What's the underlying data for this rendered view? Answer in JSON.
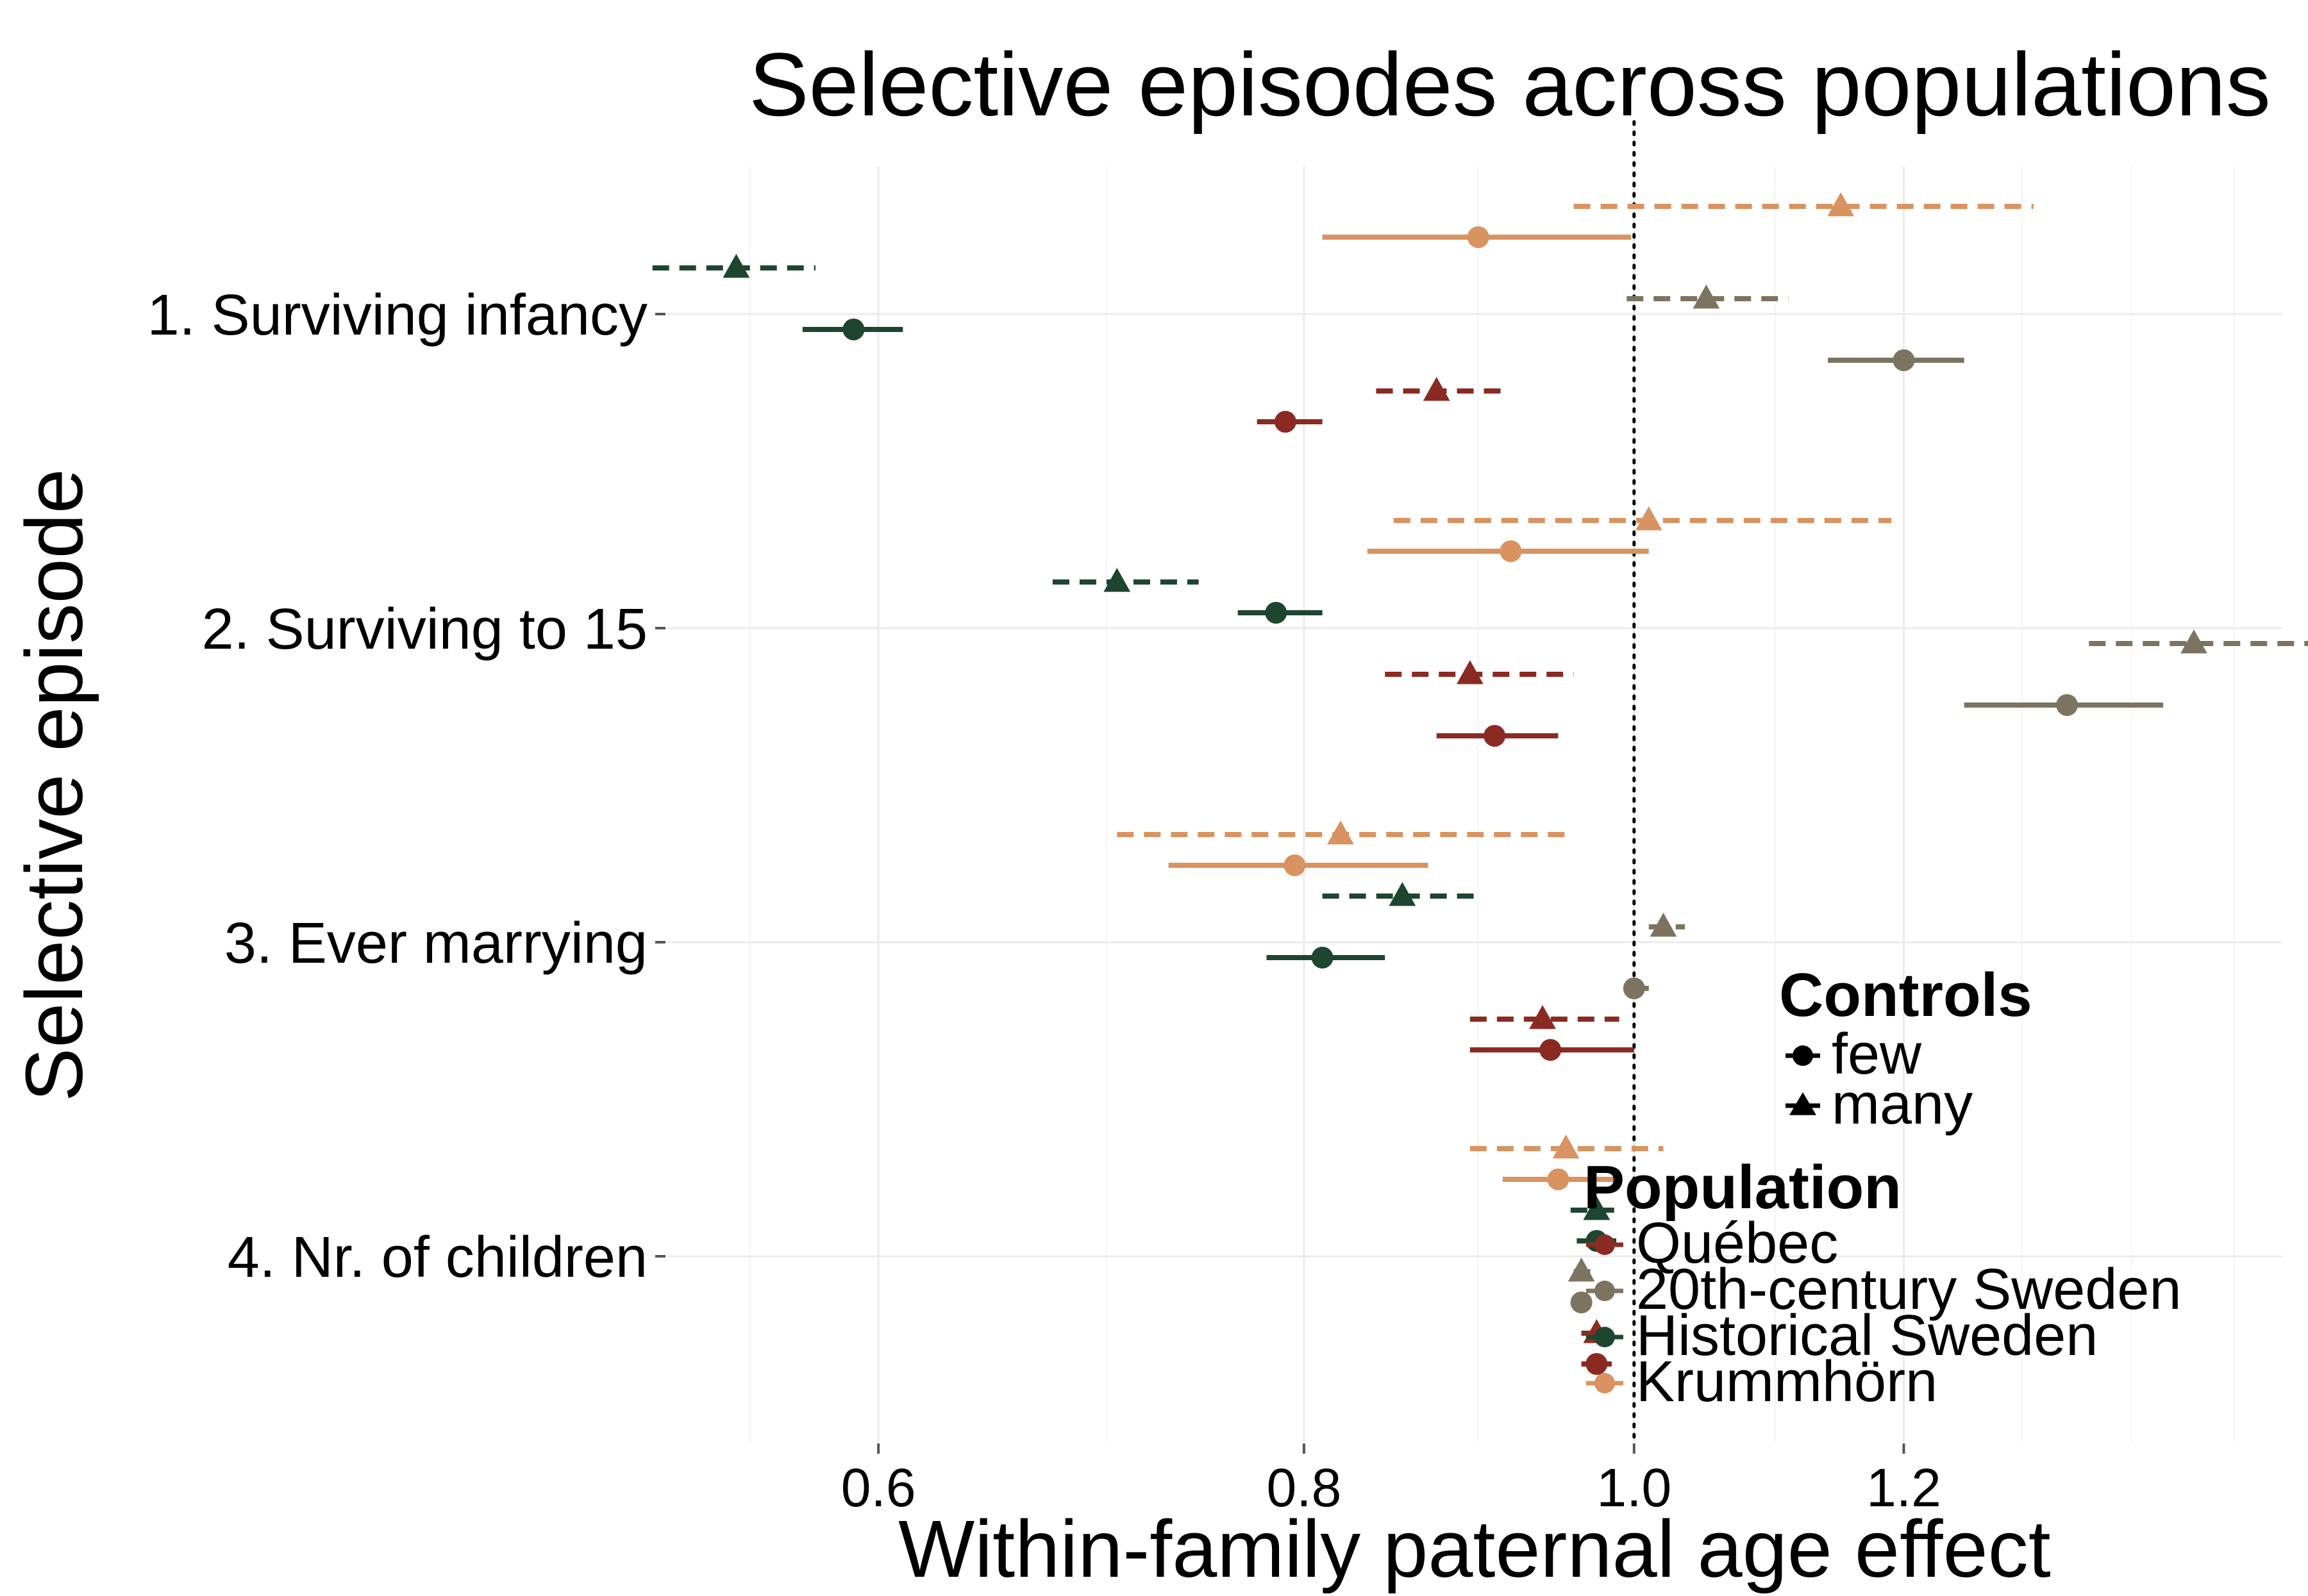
{
  "chart_data": {
    "type": "scatter",
    "title": "Selective episodes across populations",
    "xlabel": "Within-family paternal age effect",
    "ylabel": "Selective episode",
    "x_scale": "log",
    "xlim": [
      0.52,
      1.55
    ],
    "x_ticks": [
      0.6,
      0.8,
      1.0,
      1.2
    ],
    "x_tick_labels": [
      "0.6",
      "0.8",
      "1.0",
      "1.2"
    ],
    "reference_line": 1.0,
    "categories": [
      "1. Surviving infancy",
      "2. Surviving to 15",
      "3. Ever marrying",
      "4. Nr. of children"
    ],
    "grid": true,
    "legends": {
      "controls": {
        "title": "Controls",
        "placement": "right",
        "items": [
          {
            "label": "few",
            "shape": "circle",
            "linetype": "solid"
          },
          {
            "label": "many",
            "shape": "triangle",
            "linetype": "dashed"
          }
        ]
      },
      "population": {
        "title": "Population",
        "placement": "bottom-right",
        "items": [
          {
            "label": "Québec",
            "color": "#8b2a23"
          },
          {
            "label": "20th-century Sweden",
            "color": "#7c7460"
          },
          {
            "label": "Historical Sweden",
            "color": "#1e4530"
          },
          {
            "label": "Krummhörn",
            "color": "#d99360"
          }
        ]
      }
    },
    "series": [
      {
        "population": "Krummhörn",
        "controls": "many",
        "episode": 0,
        "estimate": 1.15,
        "lower": 0.96,
        "upper": 1.31
      },
      {
        "population": "Krummhörn",
        "controls": "few",
        "episode": 0,
        "estimate": 0.9,
        "lower": 0.81,
        "upper": 0.998
      },
      {
        "population": "Historical Sweden",
        "controls": "many",
        "episode": 0,
        "estimate": 0.545,
        "lower": 0.515,
        "upper": 0.575
      },
      {
        "population": "20th-century Sweden",
        "controls": "many",
        "episode": 0,
        "estimate": 1.05,
        "lower": 0.995,
        "upper": 1.11
      },
      {
        "population": "Historical Sweden",
        "controls": "few",
        "episode": 0,
        "estimate": 0.59,
        "lower": 0.57,
        "upper": 0.61
      },
      {
        "population": "20th-century Sweden",
        "controls": "few",
        "episode": 0,
        "estimate": 1.2,
        "lower": 1.14,
        "upper": 1.25
      },
      {
        "population": "Québec",
        "controls": "many",
        "episode": 0,
        "estimate": 0.875,
        "lower": 0.84,
        "upper": 0.92
      },
      {
        "population": "Québec",
        "controls": "few",
        "episode": 0,
        "estimate": 0.79,
        "lower": 0.775,
        "upper": 0.81
      },
      {
        "population": "Krummhörn",
        "controls": "many",
        "episode": 1,
        "estimate": 1.01,
        "lower": 0.85,
        "upper": 1.19
      },
      {
        "population": "Krummhörn",
        "controls": "few",
        "episode": 1,
        "estimate": 0.92,
        "lower": 0.835,
        "upper": 1.01
      },
      {
        "population": "Historical Sweden",
        "controls": "many",
        "episode": 1,
        "estimate": 0.705,
        "lower": 0.675,
        "upper": 0.745
      },
      {
        "population": "Historical Sweden",
        "controls": "few",
        "episode": 1,
        "estimate": 0.785,
        "lower": 0.765,
        "upper": 0.81
      },
      {
        "population": "20th-century Sweden",
        "controls": "many",
        "episode": 1,
        "estimate": 1.46,
        "lower": 1.36,
        "upper": 1.58
      },
      {
        "population": "Québec",
        "controls": "many",
        "episode": 1,
        "estimate": 0.895,
        "lower": 0.845,
        "upper": 0.96
      },
      {
        "population": "20th-century Sweden",
        "controls": "few",
        "episode": 1,
        "estimate": 1.34,
        "lower": 1.25,
        "upper": 1.43
      },
      {
        "population": "Québec",
        "controls": "few",
        "episode": 1,
        "estimate": 0.91,
        "lower": 0.875,
        "upper": 0.95
      },
      {
        "population": "Krummhörn",
        "controls": "many",
        "episode": 2,
        "estimate": 0.82,
        "lower": 0.705,
        "upper": 0.96
      },
      {
        "population": "Krummhörn",
        "controls": "few",
        "episode": 2,
        "estimate": 0.795,
        "lower": 0.73,
        "upper": 0.87
      },
      {
        "population": "Historical Sweden",
        "controls": "many",
        "episode": 2,
        "estimate": 0.855,
        "lower": 0.81,
        "upper": 0.9
      },
      {
        "population": "20th-century Sweden",
        "controls": "many",
        "episode": 2,
        "estimate": 1.02,
        "lower": 1.01,
        "upper": 1.035
      },
      {
        "population": "Historical Sweden",
        "controls": "few",
        "episode": 2,
        "estimate": 0.81,
        "lower": 0.78,
        "upper": 0.845
      },
      {
        "population": "20th-century Sweden",
        "controls": "few",
        "episode": 2,
        "estimate": 1.0,
        "lower": 0.995,
        "upper": 1.01
      },
      {
        "population": "Québec",
        "controls": "many",
        "episode": 2,
        "estimate": 0.94,
        "lower": 0.895,
        "upper": 0.99
      },
      {
        "population": "Québec",
        "controls": "few",
        "episode": 2,
        "estimate": 0.945,
        "lower": 0.895,
        "upper": 1.0
      },
      {
        "population": "Krummhörn",
        "controls": "many",
        "episode": 3,
        "estimate": 0.955,
        "lower": 0.895,
        "upper": 1.02
      },
      {
        "population": "Krummhörn",
        "controls": "few",
        "episode": 3,
        "estimate": 0.95,
        "lower": 0.915,
        "upper": 0.99
      },
      {
        "population": "Historical Sweden",
        "controls": "many",
        "episode": 3,
        "estimate": 0.975,
        "lower": 0.958,
        "upper": 0.99
      },
      {
        "population": "Historical Sweden",
        "controls": "few",
        "episode": 3,
        "estimate": 0.975,
        "lower": 0.962,
        "upper": 0.988
      },
      {
        "population": "20th-century Sweden",
        "controls": "many",
        "episode": 3,
        "estimate": 0.965,
        "lower": 0.96,
        "upper": 0.972
      },
      {
        "population": "20th-century Sweden",
        "controls": "few",
        "episode": 3,
        "estimate": 0.965,
        "lower": 0.96,
        "upper": 0.972
      },
      {
        "population": "Québec",
        "controls": "many",
        "episode": 3,
        "estimate": 0.975,
        "lower": 0.965,
        "upper": 0.985
      },
      {
        "population": "Québec",
        "controls": "few",
        "episode": 3,
        "estimate": 0.975,
        "lower": 0.965,
        "upper": 0.985
      }
    ]
  }
}
